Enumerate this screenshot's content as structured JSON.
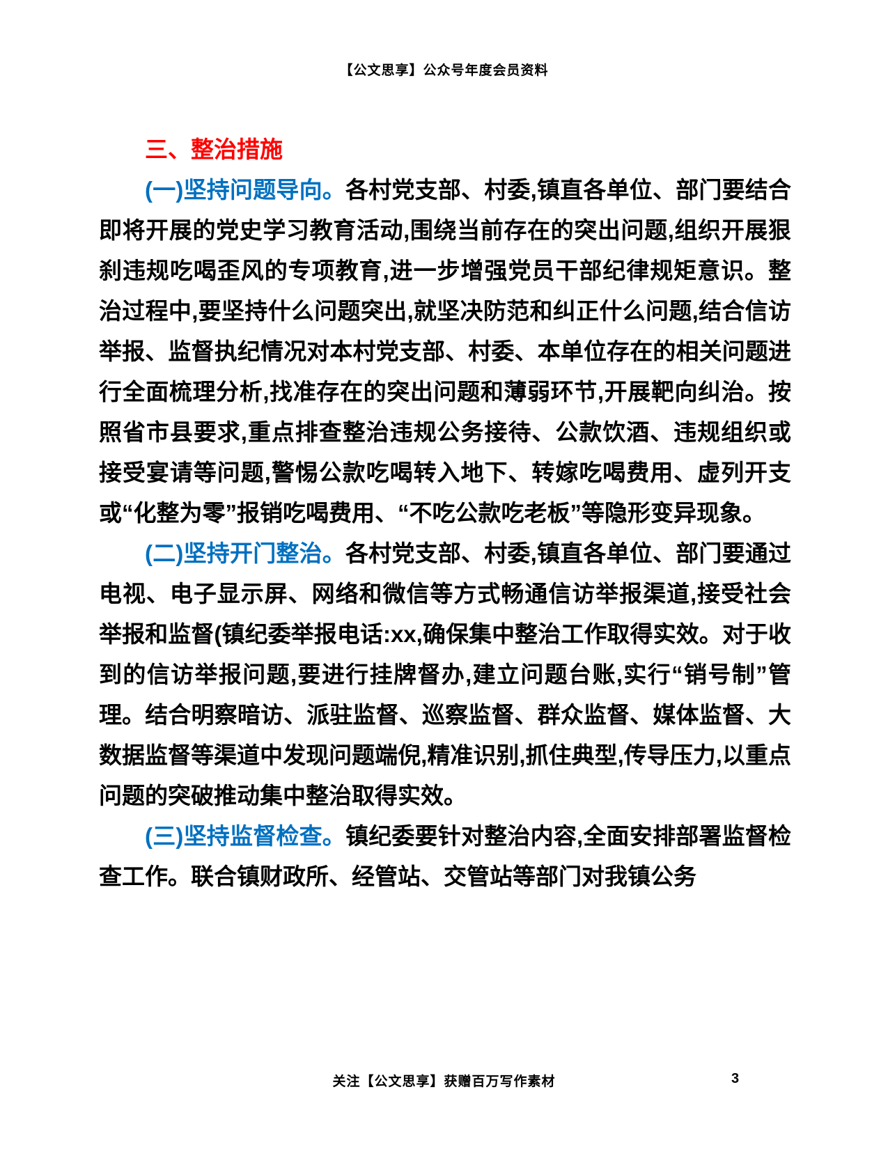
{
  "colors": {
    "section_heading_red": "#ff0000",
    "lead_blue": "#0070c0",
    "body_black": "#000000"
  },
  "header": {
    "text": "【公文思享】公众号年度会员资料"
  },
  "document": {
    "section_heading": "三、整治措施",
    "paragraphs": [
      {
        "lead": "(一)坚持问题导向。",
        "body": "各村党支部、村委,镇直各单位、部门要结合即将开展的党史学习教育活动,围绕当前存在的突出问题,组织开展狠刹违规吃喝歪风的专项教育,进一步增强党员干部纪律规矩意识。整治过程中,要坚持什么问题突出,就坚决防范和纠正什么问题,结合信访举报、监督执纪情况对本村党支部、村委、本单位存在的相关问题进行全面梳理分析,找准存在的突出问题和薄弱环节,开展靶向纠治。按照省市县要求,重点排查整治违规公务接待、公款饮酒、违规组织或接受宴请等问题,警惕公款吃喝转入地下、转嫁吃喝费用、虚列开支或“化整为零”报销吃喝费用、“不吃公款吃老板”等隐形变异现象。"
      },
      {
        "lead": "(二)坚持开门整治。",
        "body": "各村党支部、村委,镇直各单位、部门要通过电视、电子显示屏、网络和微信等方式畅通信访举报渠道,接受社会举报和监督(镇纪委举报电话:xx,确保集中整治工作取得实效。对于收到的信访举报问题,要进行挂牌督办,建立问题台账,实行“销号制”管理。结合明察暗访、派驻监督、巡察监督、群众监督、媒体监督、大数据监督等渠道中发现问题端倪,精准识别,抓住典型,传导压力,以重点问题的突破推动集中整治取得实效。"
      },
      {
        "lead": "(三)坚持监督检查。",
        "body": "镇纪委要针对整治内容,全面安排部署监督检查工作。联合镇财政所、经管站、交管站等部门对我镇公务"
      }
    ]
  },
  "footer": {
    "text": "关注【公文思享】获赠百万写作素材",
    "page_number": "3"
  }
}
